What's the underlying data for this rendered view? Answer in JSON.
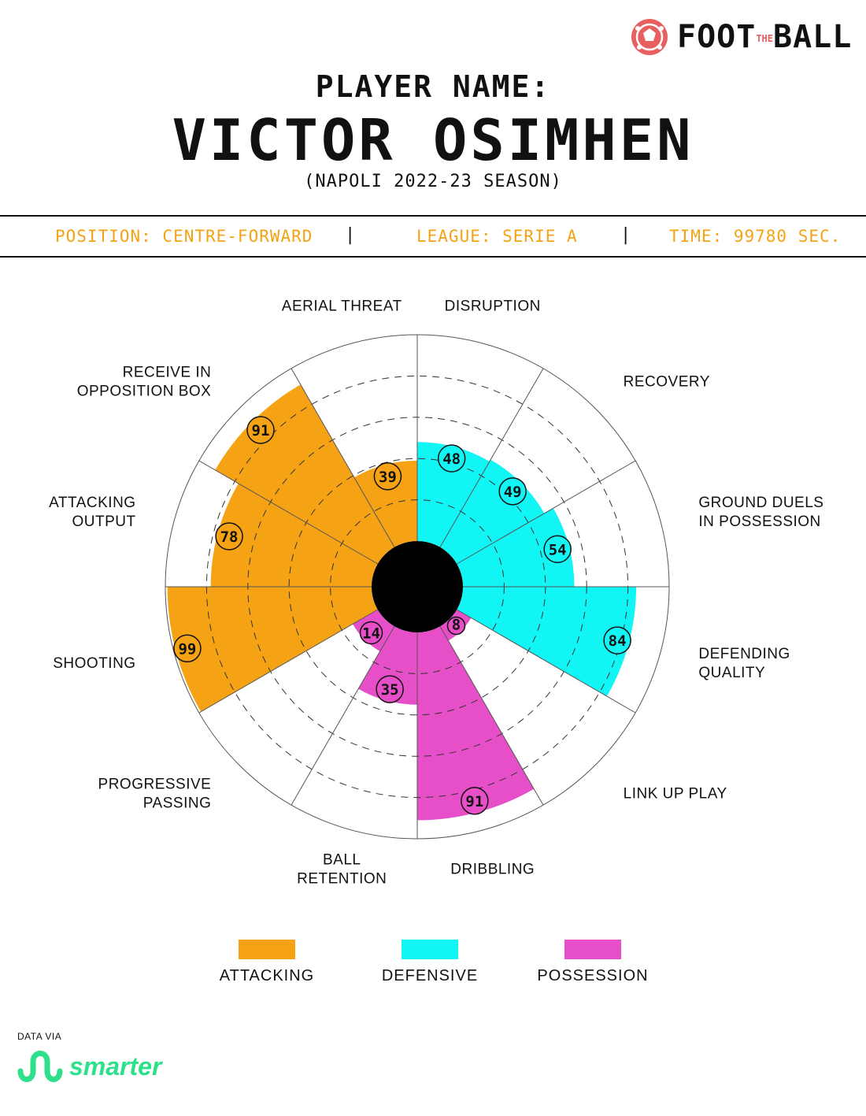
{
  "brand": {
    "logo_icon": "football-icon",
    "name_left": "FOOT",
    "name_mid": "THE",
    "name_right": "BALL",
    "accent": "#e85f5f"
  },
  "header": {
    "label": "PLAYER NAME:",
    "name": "VICTOR OSIMHEN",
    "season": "(NAPOLI 2022-23 SEASON)"
  },
  "info": {
    "position": "POSITION: CENTRE-FORWARD",
    "league": "LEAGUE: SERIE A",
    "time": "TIME: 99780 SEC.",
    "separator": "|",
    "color": "#f5a315"
  },
  "chart_data": {
    "type": "radial-bar",
    "rmax": 100,
    "grid_levels": [
      20,
      40,
      60,
      80
    ],
    "grid_style": "dashed",
    "categories": [
      {
        "label": [
          "DISRUPTION"
        ],
        "value": 48,
        "group": "defensive"
      },
      {
        "label": [
          "RECOVERY"
        ],
        "value": 49,
        "group": "defensive"
      },
      {
        "label": [
          "GROUND DUELS",
          "IN POSSESSION"
        ],
        "value": 54,
        "group": "defensive"
      },
      {
        "label": [
          "DEFENDING",
          "QUALITY"
        ],
        "value": 84,
        "group": "defensive"
      },
      {
        "label": [
          "LINK UP PLAY"
        ],
        "value": 8,
        "group": "possession"
      },
      {
        "label": [
          "DRIBBLING"
        ],
        "value": 91,
        "group": "possession"
      },
      {
        "label": [
          "BALL",
          "RETENTION"
        ],
        "value": 35,
        "group": "possession"
      },
      {
        "label": [
          "PROGRESSIVE",
          "PASSING"
        ],
        "value": 14,
        "group": "possession"
      },
      {
        "label": [
          "SHOOTING"
        ],
        "value": 99,
        "group": "attacking"
      },
      {
        "label": [
          "ATTACKING",
          "OUTPUT"
        ],
        "value": 78,
        "group": "attacking"
      },
      {
        "label": [
          "RECEIVE IN",
          "OPPOSITION BOX"
        ],
        "value": 91,
        "group": "attacking"
      },
      {
        "label": [
          "AERIAL THREAT"
        ],
        "value": 39,
        "group": "attacking"
      }
    ],
    "groups": [
      {
        "key": "attacking",
        "name": "ATTACKING",
        "color": "#f5a315"
      },
      {
        "key": "defensive",
        "name": "DEFENSIVE",
        "color": "#12f5f5"
      },
      {
        "key": "possession",
        "name": "POSSESSION",
        "color": "#e64fc7"
      }
    ]
  },
  "legend": {
    "attacking": "ATTACKING",
    "defensive": "DEFENSIVE",
    "possession": "POSSESSION"
  },
  "footer": {
    "data_via": "DATA VIA",
    "source_icon": "smarter-logo-icon",
    "source": "smarter",
    "source_color": "#2ee08a"
  }
}
